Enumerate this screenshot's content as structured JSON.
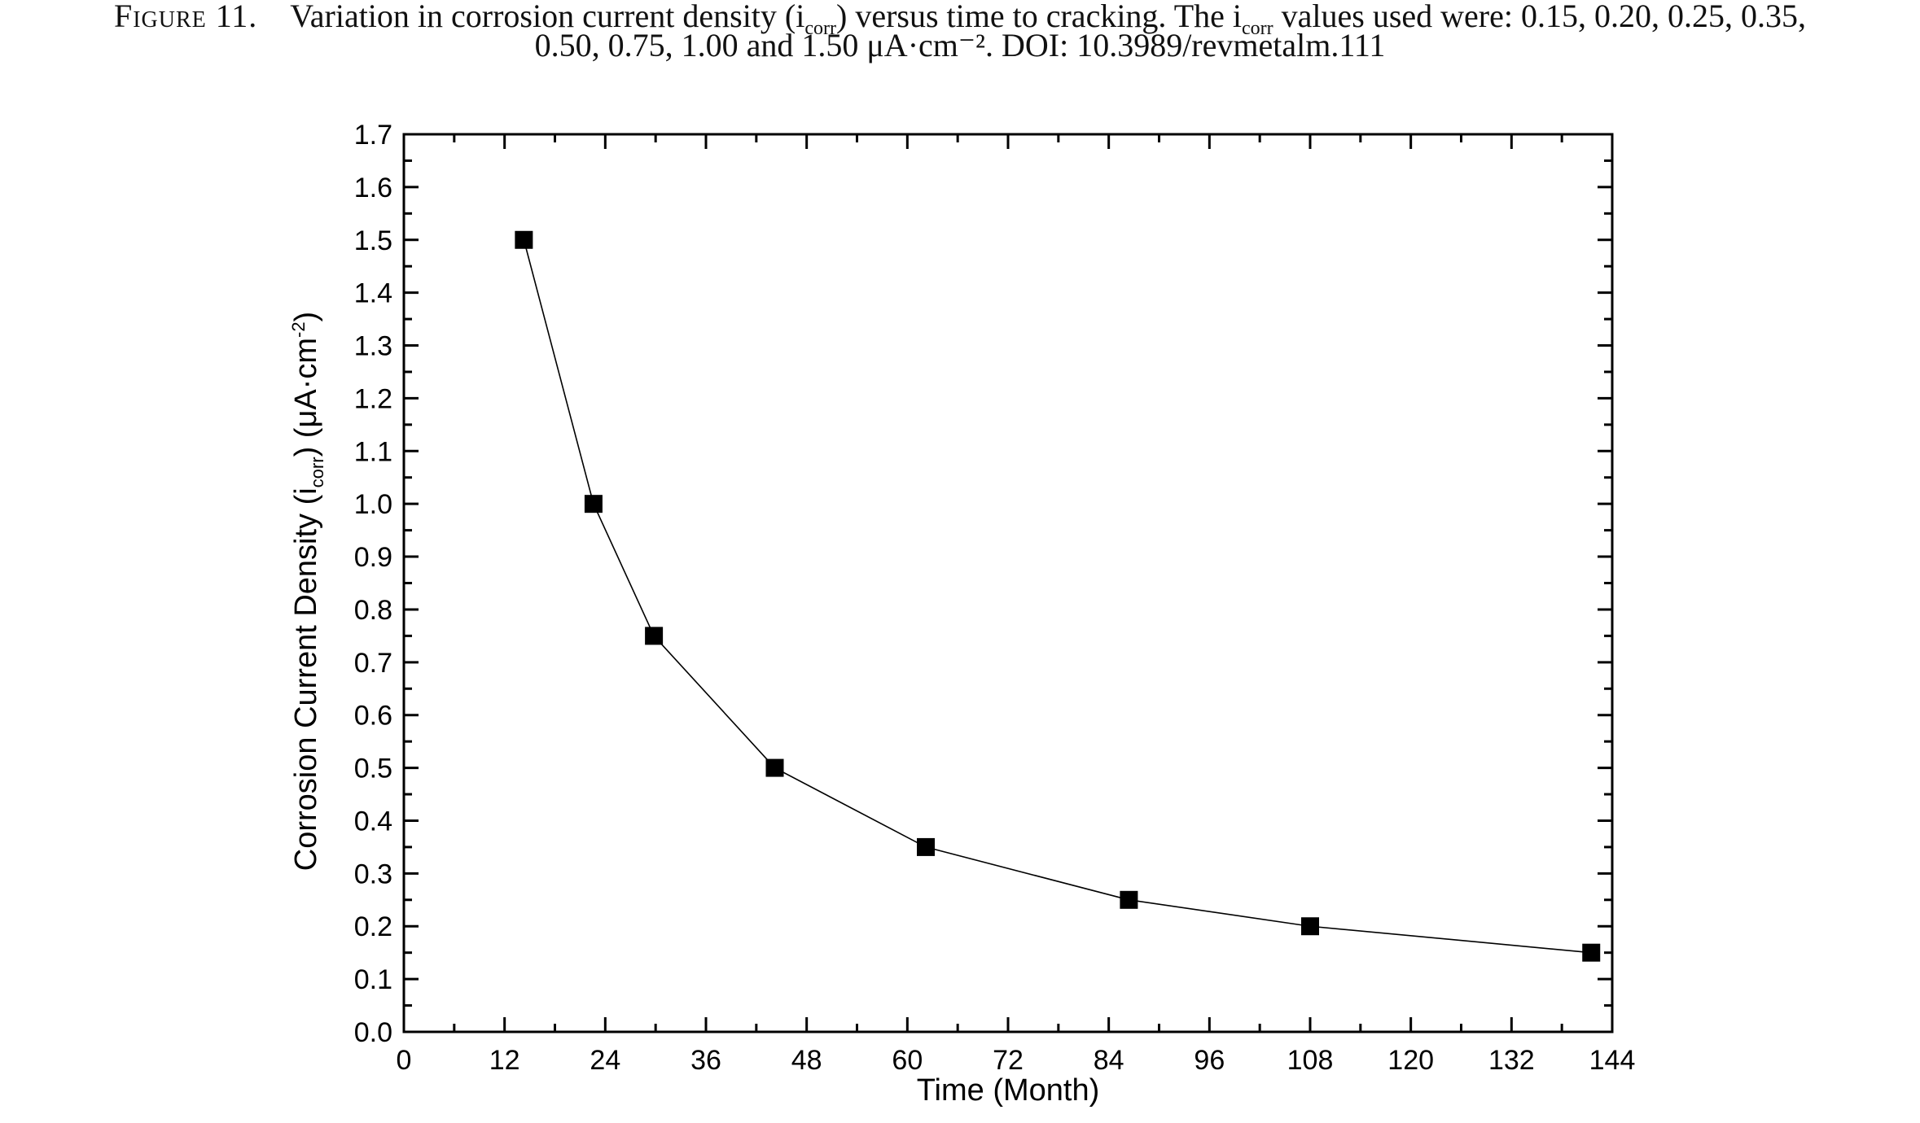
{
  "caption": {
    "figure_label": "Figure 11.",
    "line1_text": "Variation in corrosion current density (i",
    "line1_sub": "corr",
    "line1_mid": ") versus time to cracking. The i",
    "line1_sub2": "corr",
    "line1_end": " values used were: 0.15, 0.20, 0.25, 0.35,",
    "line2": "0.50, 0.75, 1.00 and 1.50 μA·cm⁻². DOI: 10.3989/revmetalm.111"
  },
  "chart_data": {
    "type": "line",
    "title": "",
    "xlabel": "Time (Month)",
    "ylabel_main": "Corrosion Current Density (i",
    "ylabel_sub": "corr",
    "ylabel_end": ") (μA·cm",
    "ylabel_sup": "-2",
    "ylabel_close": ")",
    "xlim": [
      0,
      144
    ],
    "ylim": [
      0.0,
      1.7
    ],
    "xticks": [
      "0",
      "12",
      "24",
      "36",
      "48",
      "60",
      "72",
      "84",
      "96",
      "108",
      "120",
      "132",
      "144"
    ],
    "yticks": [
      "0.0",
      "0.1",
      "0.2",
      "0.3",
      "0.4",
      "0.5",
      "0.6",
      "0.7",
      "0.8",
      "0.9",
      "1.0",
      "1.1",
      "1.2",
      "1.3",
      "1.4",
      "1.5",
      "1.6",
      "1.7"
    ],
    "grid": false,
    "series": [
      {
        "marker": "square",
        "x": [
          14.3,
          22.6,
          29.8,
          44.2,
          62.2,
          86.4,
          108.0,
          141.5
        ],
        "y": [
          1.5,
          1.0,
          0.75,
          0.5,
          0.35,
          0.25,
          0.2,
          0.15
        ]
      }
    ],
    "colors": {
      "line": "#000000",
      "marker": "#000000"
    }
  }
}
